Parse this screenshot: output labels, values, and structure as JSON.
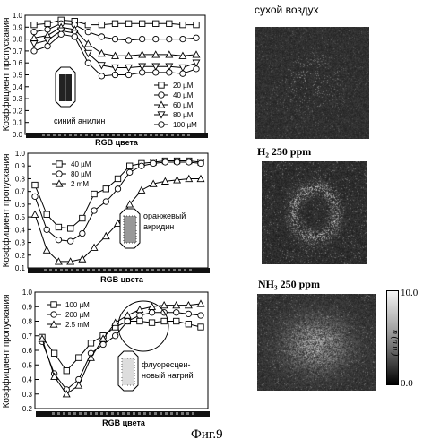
{
  "figure_caption": "Фиг.9",
  "panel_labels": {
    "p1_compound": "синий анилин",
    "p2_compound_line1": "оранжевый",
    "p2_compound_line2": "акридин",
    "p3_compound_line1": "флуоресцеи-",
    "p3_compound_line2": "новый натрий"
  },
  "image_labels": {
    "img1_title": "сухой воздух",
    "img2_title": "H₂ 250 ppm",
    "img3_title": "NH₃ 250 ppm",
    "colorbar_max": "10.0",
    "colorbar_min": "0.0",
    "colorbar_label": "n (a.u.)"
  },
  "chart_data": [
    {
      "type": "line",
      "ylabel": "Коэффициент пропускания",
      "xlabel": "RGB цвета",
      "ylim": [
        0.0,
        1.0
      ],
      "yticks": [
        "0.0",
        "0.1",
        "0.2",
        "0.3",
        "0.4",
        "0.5",
        "0.6",
        "0.7",
        "0.8",
        "0.9",
        "1.0"
      ],
      "legend_position": "bottom-right",
      "x": [
        1,
        2,
        3,
        4,
        5,
        6,
        7,
        8,
        9,
        10,
        11,
        12,
        13
      ],
      "series": [
        {
          "name": "20 µM",
          "marker": "square",
          "values": [
            0.92,
            0.93,
            0.96,
            0.95,
            0.92,
            0.92,
            0.93,
            0.93,
            0.93,
            0.93,
            0.93,
            0.92,
            0.92
          ]
        },
        {
          "name": "40 µM",
          "marker": "circle",
          "values": [
            0.86,
            0.88,
            0.93,
            0.92,
            0.86,
            0.82,
            0.8,
            0.79,
            0.8,
            0.8,
            0.8,
            0.8,
            0.81
          ]
        },
        {
          "name": "60 µM",
          "marker": "triangle",
          "values": [
            0.81,
            0.83,
            0.9,
            0.88,
            0.76,
            0.68,
            0.66,
            0.66,
            0.67,
            0.67,
            0.67,
            0.66,
            0.67
          ]
        },
        {
          "name": "80 µM",
          "marker": "triangle-down",
          "values": [
            0.76,
            0.79,
            0.87,
            0.85,
            0.68,
            0.58,
            0.56,
            0.56,
            0.57,
            0.57,
            0.57,
            0.56,
            0.6
          ]
        },
        {
          "name": "100 µM",
          "marker": "circle",
          "values": [
            0.7,
            0.74,
            0.84,
            0.82,
            0.6,
            0.49,
            0.5,
            0.5,
            0.52,
            0.52,
            0.52,
            0.51,
            0.55
          ]
        }
      ]
    },
    {
      "type": "line",
      "ylabel": "Коэффициент пропускания",
      "xlabel": "RGB цвета",
      "ylim": [
        0.1,
        1.0
      ],
      "yticks": [
        "0.1",
        "0.2",
        "0.3",
        "0.4",
        "0.5",
        "0.6",
        "0.7",
        "0.8",
        "0.9",
        "1.0"
      ],
      "legend_position": "top-left",
      "x": [
        1,
        2,
        3,
        4,
        5,
        6,
        7,
        8,
        9,
        10,
        11,
        12,
        13,
        14,
        15
      ],
      "series": [
        {
          "name": "40 µM",
          "marker": "square",
          "values": [
            0.75,
            0.52,
            0.42,
            0.41,
            0.49,
            0.68,
            0.72,
            0.8,
            0.9,
            0.92,
            0.93,
            0.94,
            0.94,
            0.94,
            0.93
          ]
        },
        {
          "name": "80 µM",
          "marker": "circle",
          "values": [
            0.66,
            0.4,
            0.32,
            0.31,
            0.37,
            0.55,
            0.62,
            0.72,
            0.85,
            0.9,
            0.92,
            0.93,
            0.93,
            0.93,
            0.92
          ]
        },
        {
          "name": "2 mM",
          "marker": "triangle",
          "values": [
            0.52,
            0.24,
            0.15,
            0.15,
            0.17,
            0.26,
            0.35,
            0.45,
            0.6,
            0.71,
            0.76,
            0.78,
            0.79,
            0.8,
            0.8
          ]
        }
      ]
    },
    {
      "type": "line",
      "ylabel": "Коэффициент пропускания",
      "xlabel": "RGB цвета",
      "ylim": [
        0.2,
        1.0
      ],
      "yticks": [
        "0.2",
        "0.3",
        "0.4",
        "0.5",
        "0.6",
        "0.7",
        "0.8",
        "0.9",
        "1.0"
      ],
      "legend_position": "top-left",
      "x": [
        1,
        2,
        3,
        4,
        5,
        6,
        7,
        8,
        9,
        10,
        11,
        12,
        13,
        14
      ],
      "series": [
        {
          "name": "100 µM",
          "marker": "square",
          "values": [
            0.69,
            0.58,
            0.46,
            0.55,
            0.65,
            0.7,
            0.76,
            0.8,
            0.8,
            0.79,
            0.8,
            0.8,
            0.78,
            0.76
          ]
        },
        {
          "name": "200 µM",
          "marker": "circle",
          "values": [
            0.66,
            0.44,
            0.33,
            0.4,
            0.58,
            0.64,
            0.7,
            0.8,
            0.84,
            0.86,
            0.86,
            0.86,
            0.85,
            0.84
          ]
        },
        {
          "name": "2.5 mM",
          "marker": "triangle",
          "values": [
            0.68,
            0.42,
            0.3,
            0.36,
            0.55,
            0.68,
            0.79,
            0.84,
            0.88,
            0.9,
            0.91,
            0.91,
            0.91,
            0.92
          ]
        }
      ]
    }
  ]
}
